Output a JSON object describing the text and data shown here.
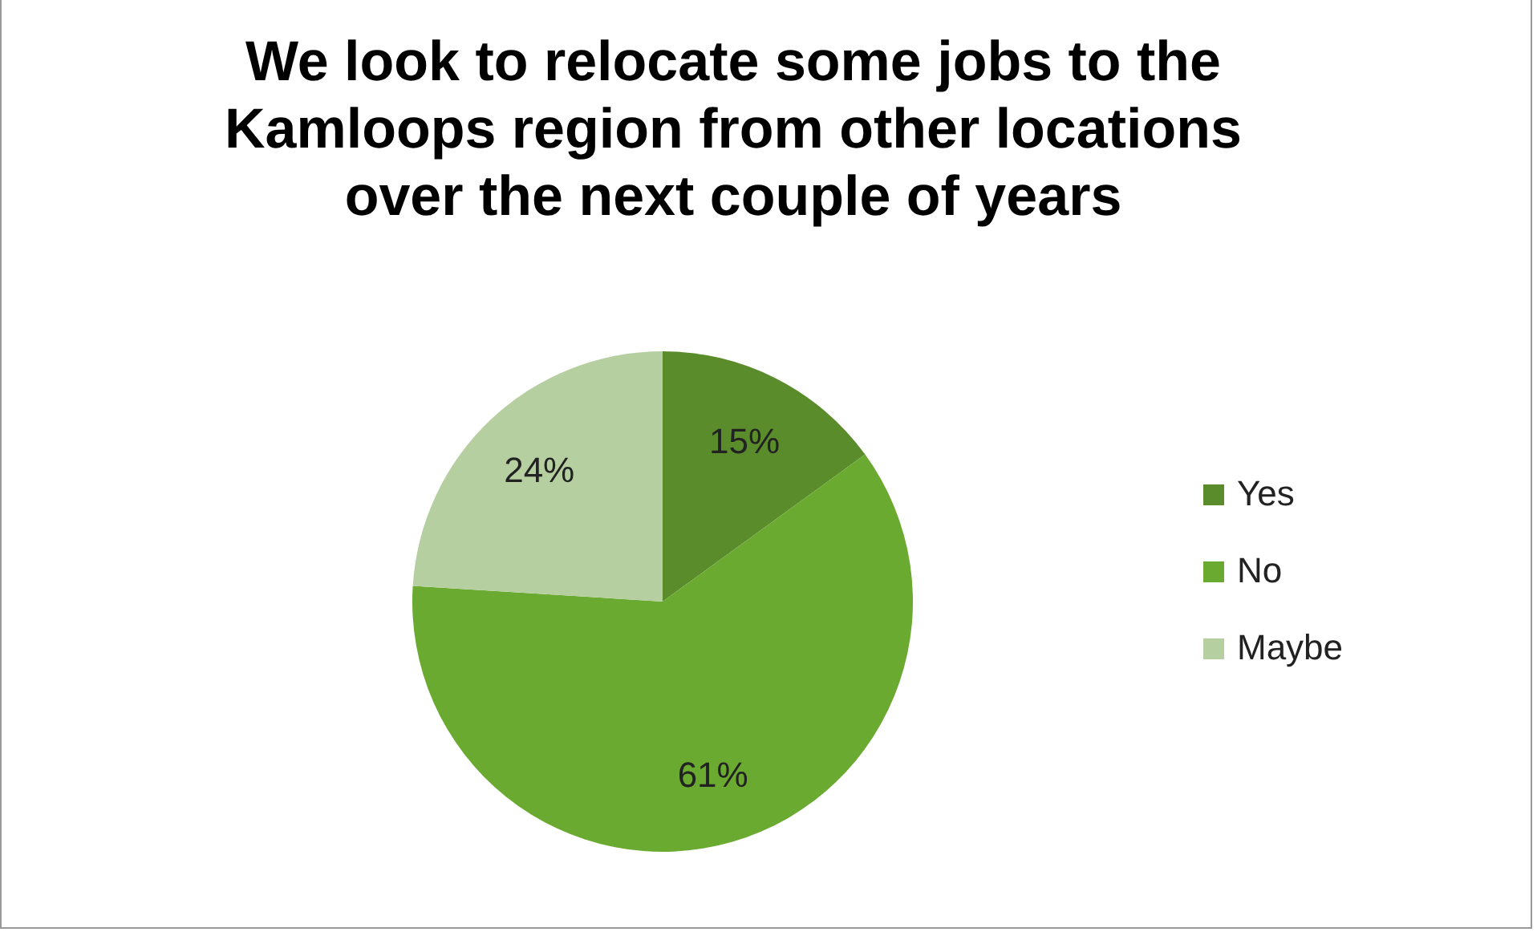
{
  "chart_data": {
    "type": "pie",
    "title": "We look to relocate some jobs to the Kamloops region from other locations over the next couple of years",
    "categories": [
      "Yes",
      "No",
      "Maybe"
    ],
    "values": [
      15,
      61,
      24
    ],
    "colors": [
      "#5a8c2b",
      "#6aaa30",
      "#b5cfa0"
    ],
    "value_labels": [
      "15%",
      "61%",
      "24%"
    ],
    "legend": "right"
  }
}
